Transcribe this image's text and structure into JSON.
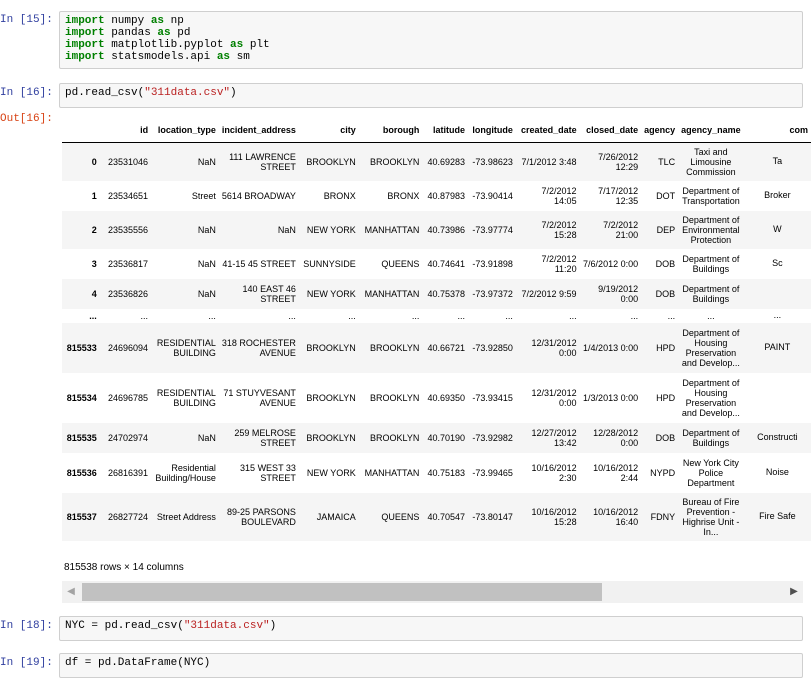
{
  "cells": [
    {
      "prompt": "In [15]:",
      "lines": [
        [
          {
            "t": "import",
            "k": "kw"
          },
          {
            "t": " numpy "
          },
          {
            "t": "as",
            "k": "kw"
          },
          {
            "t": " np"
          }
        ],
        [
          {
            "t": "import",
            "k": "kw"
          },
          {
            "t": " pandas "
          },
          {
            "t": "as",
            "k": "kw"
          },
          {
            "t": " pd"
          }
        ],
        [
          {
            "t": "import",
            "k": "kw"
          },
          {
            "t": " matplotlib.pyplot "
          },
          {
            "t": "as",
            "k": "kw"
          },
          {
            "t": " plt"
          }
        ],
        [
          {
            "t": "import",
            "k": "kw"
          },
          {
            "t": " statsmodels.api "
          },
          {
            "t": "as",
            "k": "kw"
          },
          {
            "t": " sm"
          }
        ]
      ]
    },
    {
      "prompt": "In [16]:",
      "lines": [
        [
          {
            "t": "pd.read_csv("
          },
          {
            "t": "\"311data.csv\"",
            "k": "str"
          },
          {
            "t": ")"
          }
        ]
      ]
    },
    {
      "prompt": "In [18]:",
      "lines": [
        [
          {
            "t": "NYC = pd.read_csv("
          },
          {
            "t": "\"311data.csv\"",
            "k": "str"
          },
          {
            "t": ")"
          }
        ]
      ]
    },
    {
      "prompt": "In [19]:",
      "lines": [
        [
          {
            "t": "df = pd.DataFrame(NYC)"
          }
        ]
      ]
    }
  ],
  "output_prompt": "Out[16]:",
  "table": {
    "columns": [
      "",
      "id",
      "location_type",
      "incident_address",
      "city",
      "borough",
      "latitude",
      "longitude",
      "created_date",
      "closed_date",
      "agency",
      "agency_name",
      "com"
    ],
    "rows": [
      {
        "idx": "0",
        "cells": [
          "23531046",
          "NaN",
          "111 LAWRENCE STREET",
          "BROOKLYN",
          "BROOKLYN",
          "40.69283",
          "-73.98623",
          "7/1/2012 3:48",
          "7/26/2012 12:29",
          "TLC",
          "Taxi and Limousine Commission",
          "Ta"
        ]
      },
      {
        "idx": "1",
        "cells": [
          "23534651",
          "Street",
          "5614 BROADWAY",
          "BRONX",
          "BRONX",
          "40.87983",
          "-73.90414",
          "7/2/2012 14:05",
          "7/17/2012 12:35",
          "DOT",
          "Department of Transportation",
          "Broker"
        ]
      },
      {
        "idx": "2",
        "cells": [
          "23535556",
          "NaN",
          "NaN",
          "NEW YORK",
          "MANHATTAN",
          "40.73986",
          "-73.97774",
          "7/2/2012 15:28",
          "7/2/2012 21:00",
          "DEP",
          "Department of Environmental Protection",
          "W"
        ]
      },
      {
        "idx": "3",
        "cells": [
          "23536817",
          "NaN",
          "41-15 45 STREET",
          "SUNNYSIDE",
          "QUEENS",
          "40.74641",
          "-73.91898",
          "7/2/2012 11:20",
          "7/6/2012 0:00",
          "DOB",
          "Department of Buildings",
          "Sc"
        ]
      },
      {
        "idx": "4",
        "cells": [
          "23536826",
          "NaN",
          "140 EAST 46 STREET",
          "NEW YORK",
          "MANHATTAN",
          "40.75378",
          "-73.97372",
          "7/2/2012 9:59",
          "9/19/2012 0:00",
          "DOB",
          "Department of Buildings",
          ""
        ]
      },
      {
        "idx": "...",
        "cells": [
          "...",
          "...",
          "...",
          "...",
          "...",
          "...",
          "...",
          "...",
          "...",
          "...",
          "...",
          "..."
        ]
      },
      {
        "idx": "815533",
        "cells": [
          "24696094",
          "RESIDENTIAL BUILDING",
          "318 ROCHESTER AVENUE",
          "BROOKLYN",
          "BROOKLYN",
          "40.66721",
          "-73.92850",
          "12/31/2012 0:00",
          "1/4/2013 0:00",
          "HPD",
          "Department of Housing Preservation and Develop...",
          "PAINT"
        ]
      },
      {
        "idx": "815534",
        "cells": [
          "24696785",
          "RESIDENTIAL BUILDING",
          "71 STUYVESANT AVENUE",
          "BROOKLYN",
          "BROOKLYN",
          "40.69350",
          "-73.93415",
          "12/31/2012 0:00",
          "1/3/2013 0:00",
          "HPD",
          "Department of Housing Preservation and Develop...",
          ""
        ]
      },
      {
        "idx": "815535",
        "cells": [
          "24702974",
          "NaN",
          "259 MELROSE STREET",
          "BROOKLYN",
          "BROOKLYN",
          "40.70190",
          "-73.92982",
          "12/27/2012 13:42",
          "12/28/2012 0:00",
          "DOB",
          "Department of Buildings",
          "Constructi"
        ]
      },
      {
        "idx": "815536",
        "cells": [
          "26816391",
          "Residential Building/House",
          "315 WEST 33 STREET",
          "NEW YORK",
          "MANHATTAN",
          "40.75183",
          "-73.99465",
          "10/16/2012 2:30",
          "10/16/2012 2:44",
          "NYPD",
          "New York City Police Department",
          "Noise"
        ]
      },
      {
        "idx": "815537",
        "cells": [
          "26827724",
          "Street Address",
          "89-25 PARSONS BOULEVARD",
          "JAMAICA",
          "QUEENS",
          "40.70547",
          "-73.80147",
          "10/16/2012 15:28",
          "10/16/2012 16:40",
          "FDNY",
          "Bureau of Fire Prevention - Highrise Unit - In...",
          "Fire Safe"
        ]
      }
    ]
  },
  "rows_count": "815538 rows × 14 columns",
  "scrollbar": {
    "left_arrow": "◀",
    "right_arrow": "▶"
  }
}
